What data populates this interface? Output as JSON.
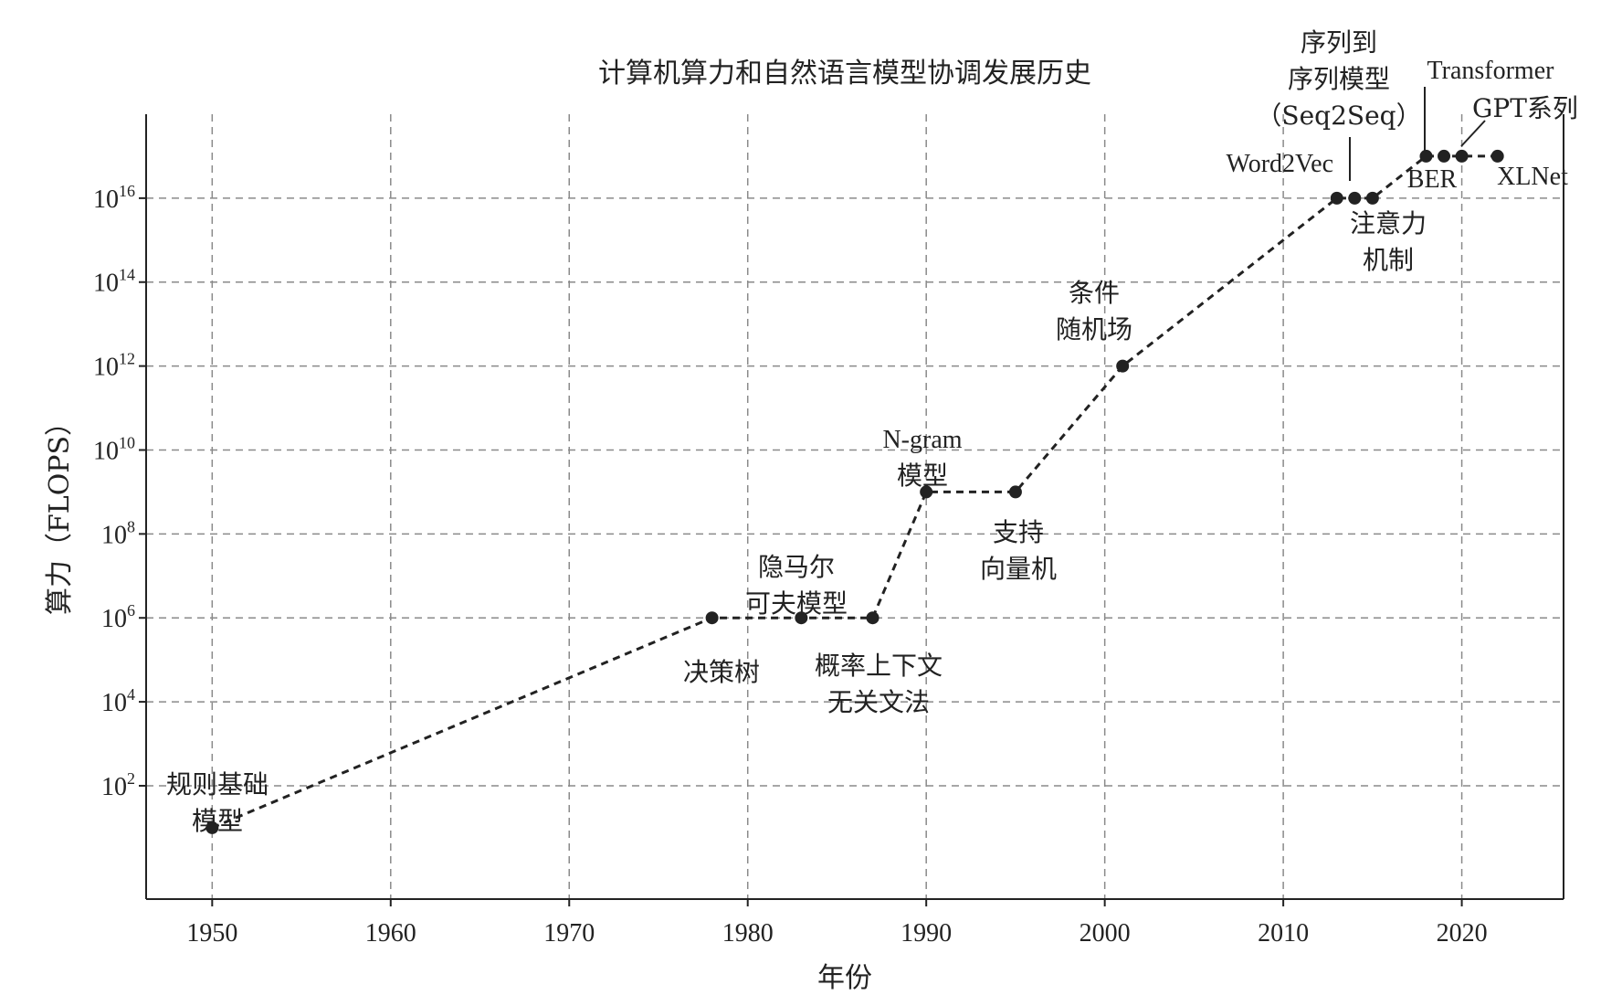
{
  "chart_data": {
    "type": "line",
    "title": "计算机算力和自然语言模型协调发展历史",
    "xlabel": "年份",
    "ylabel": "算力（FLOPS）",
    "yscale": "log",
    "xlim": [
      1946.3,
      2025.7
    ],
    "ylim_log10": [
      -0.7,
      18
    ],
    "x_ticks": [
      "1950",
      "1960",
      "1970",
      "1980",
      "1990",
      "2000",
      "2010",
      "2020"
    ],
    "y_ticks": [
      {
        "base": "10",
        "exp": "2"
      },
      {
        "base": "10",
        "exp": "4"
      },
      {
        "base": "10",
        "exp": "6"
      },
      {
        "base": "10",
        "exp": "8"
      },
      {
        "base": "10",
        "exp": "10"
      },
      {
        "base": "10",
        "exp": "12"
      },
      {
        "base": "10",
        "exp": "14"
      },
      {
        "base": "10",
        "exp": "16"
      }
    ],
    "grid": true,
    "series": [
      {
        "x": [
          1950,
          1978,
          1983,
          1987,
          1990,
          1995,
          2001,
          2013,
          2014,
          2015,
          2018,
          2019,
          2020,
          2022
        ],
        "y_log10": [
          1,
          6,
          6,
          6,
          9,
          9,
          12,
          16,
          16,
          16,
          17,
          17,
          17,
          17
        ]
      }
    ],
    "annotations": [
      {
        "lines": [
          "规则基础",
          "模型"
        ]
      },
      {
        "lines": [
          "决策树"
        ]
      },
      {
        "lines": [
          "隐马尔",
          "可夫模型"
        ]
      },
      {
        "lines": [
          "概率上下文",
          "无关文法"
        ]
      },
      {
        "lines": [
          "N-gram",
          "模型"
        ]
      },
      {
        "lines": [
          "支持",
          "向量机"
        ]
      },
      {
        "lines": [
          "条件",
          "随机场"
        ]
      },
      {
        "lines": [
          "Word2Vec"
        ]
      },
      {
        "lines": [
          "序列到",
          "序列模型",
          "（Seq2Seq）"
        ]
      },
      {
        "lines": [
          "注意力",
          "机制"
        ]
      },
      {
        "lines": [
          "Transformer"
        ]
      },
      {
        "lines": [
          "GPT系列"
        ]
      },
      {
        "lines": [
          "BER"
        ]
      },
      {
        "lines": [
          "XLNet"
        ]
      }
    ]
  }
}
